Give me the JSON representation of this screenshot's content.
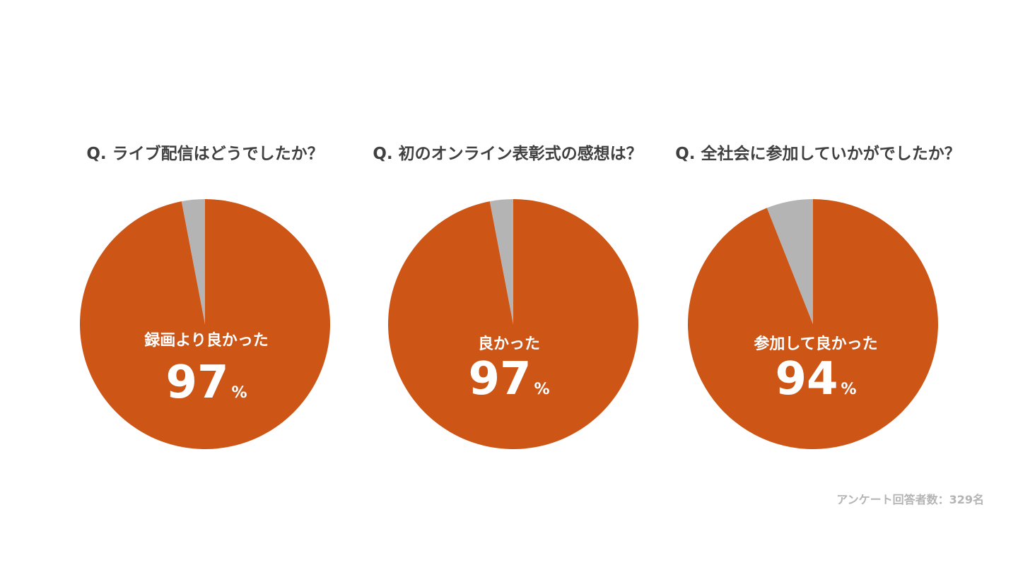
{
  "colors": {
    "main": "#CD5617",
    "rest": "#B4B4B4",
    "title": "#404040"
  },
  "chart_data": [
    {
      "type": "pie",
      "title": "Q. ライブ配信はどうでしたか？",
      "slices": [
        {
          "label": "録画より良かった",
          "value": 97
        },
        {
          "label": "",
          "value": 3
        }
      ],
      "center_label": "録画より良かった",
      "center_value": "97",
      "unit": "%"
    },
    {
      "type": "pie",
      "title": "Q. 初のオンライン表彰式の感想は？",
      "slices": [
        {
          "label": "良かった",
          "value": 97
        },
        {
          "label": "",
          "value": 3
        }
      ],
      "center_label": "良かった",
      "center_value": "97",
      "unit": "%"
    },
    {
      "type": "pie",
      "title": "Q. 全社会に参加していかがでしたか？",
      "slices": [
        {
          "label": "参加して良かった",
          "value": 94
        },
        {
          "label": "",
          "value": 6
        }
      ],
      "center_label": "参加して良かった",
      "center_value": "94",
      "unit": "%"
    }
  ],
  "footer": "アンケート回答者数：329名"
}
